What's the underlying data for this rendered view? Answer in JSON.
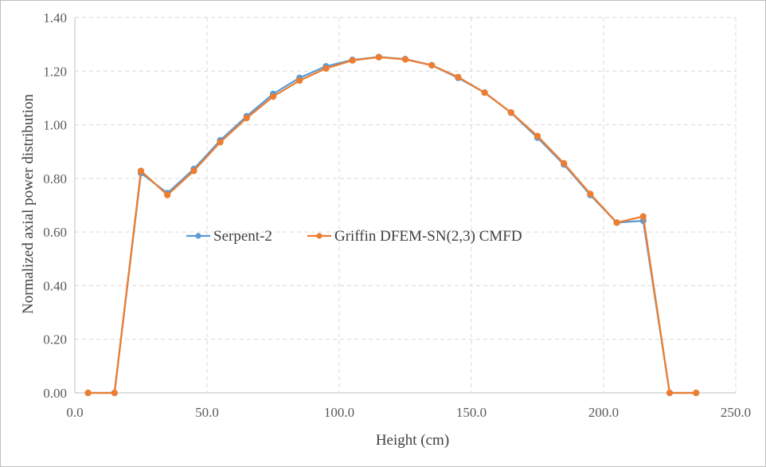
{
  "chart_data": {
    "type": "line",
    "title": "",
    "xlabel": "Height (cm)",
    "ylabel": "Normalized axial power distribution",
    "xlim": [
      0,
      250
    ],
    "ylim": [
      0,
      1.4
    ],
    "x_ticks": [
      "0.0",
      "50.0",
      "100.0",
      "150.0",
      "200.0",
      "250.0"
    ],
    "y_ticks": [
      "0.00",
      "0.20",
      "0.40",
      "0.60",
      "0.80",
      "1.00",
      "1.20",
      "1.40"
    ],
    "grid": true,
    "legend_position": "center-left",
    "x": [
      5,
      15,
      25,
      35,
      45,
      55,
      65,
      75,
      85,
      95,
      105,
      115,
      125,
      135,
      145,
      155,
      165,
      175,
      185,
      195,
      205,
      215,
      225,
      235
    ],
    "series": [
      {
        "name": "Serpent-2",
        "color": "#5b9bd5",
        "values": [
          0.0,
          0.0,
          0.82,
          0.745,
          0.835,
          0.942,
          1.032,
          1.115,
          1.175,
          1.218,
          1.242,
          1.253,
          1.245,
          1.222,
          1.175,
          1.12,
          1.045,
          0.952,
          0.852,
          0.738,
          0.635,
          0.642,
          0.0,
          0.0
        ]
      },
      {
        "name": "Griffin DFEM-SN(2,3) CMFD",
        "color": "#ed7d31",
        "values": [
          0.0,
          0.0,
          0.828,
          0.738,
          0.828,
          0.935,
          1.025,
          1.105,
          1.165,
          1.21,
          1.24,
          1.252,
          1.244,
          1.222,
          1.178,
          1.12,
          1.046,
          0.958,
          0.856,
          0.742,
          0.635,
          0.658,
          0.0,
          0.0
        ]
      }
    ]
  }
}
